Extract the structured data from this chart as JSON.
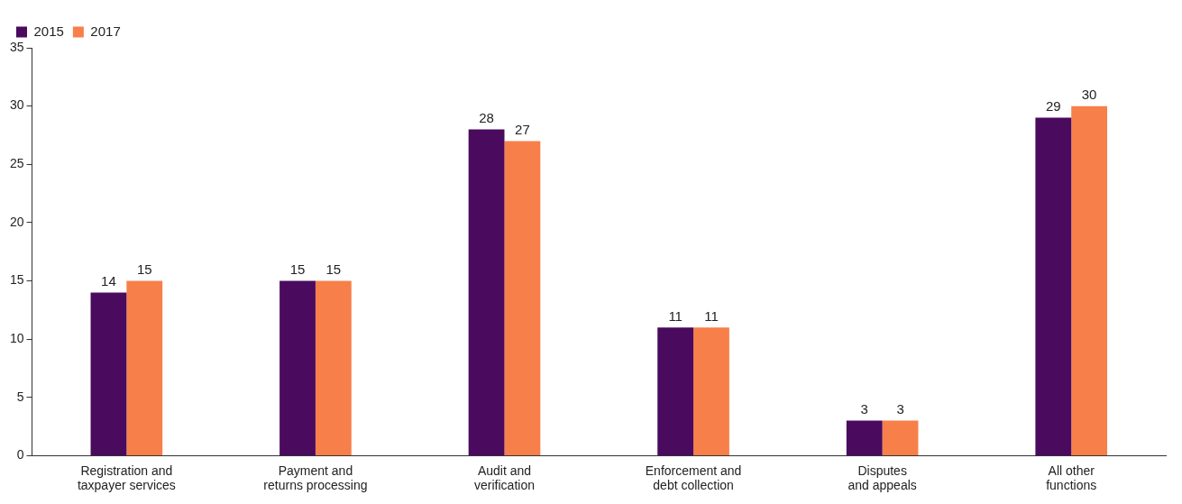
{
  "chart_data": {
    "type": "bar",
    "categories": [
      "Registration and taxpayer services",
      "Payment and returns processing",
      "Audit and verification",
      "Enforcement and debt collection",
      "Disputes and appeals",
      "All other functions"
    ],
    "series": [
      {
        "name": "2015",
        "color": "#4a0a5e",
        "values": [
          14,
          15,
          28,
          11,
          3,
          29
        ]
      },
      {
        "name": "2017",
        "color": "#f77f4a",
        "values": [
          15,
          15,
          27,
          11,
          3,
          30
        ]
      }
    ],
    "ylim": [
      0,
      35
    ],
    "yticks": [
      0,
      5,
      10,
      15,
      20,
      25,
      30,
      35
    ],
    "grid": false,
    "legend": "top left",
    "data_labels": true
  }
}
